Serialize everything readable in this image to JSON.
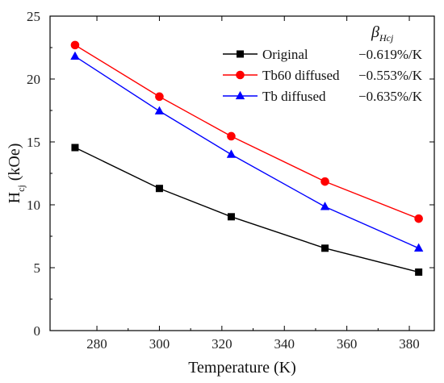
{
  "chart_data": {
    "type": "line",
    "xlabel": "Temperature (K)",
    "ylabel": {
      "main": "H",
      "sub": "cj",
      "unit": " (kOe)"
    },
    "xlim": [
      265,
      388
    ],
    "ylim": [
      0,
      25
    ],
    "xticks": [
      280,
      300,
      320,
      340,
      360,
      380
    ],
    "yticks": [
      0,
      5,
      10,
      15,
      20,
      25
    ],
    "grid": false,
    "legend_position": "top-right",
    "legend_header": {
      "symbol": "β",
      "sub": "Hcj"
    },
    "series": [
      {
        "name": "Original",
        "annotation": "−0.619%/K",
        "color": "#000000",
        "marker": "square",
        "x": [
          273,
          300,
          323,
          353,
          383
        ],
        "y": [
          14.55,
          11.3,
          9.05,
          6.55,
          4.65
        ]
      },
      {
        "name": "Tb60 diffused",
        "annotation": "−0.553%/K",
        "color": "#ff0000",
        "marker": "circle",
        "x": [
          273,
          300,
          323,
          353,
          383
        ],
        "y": [
          22.7,
          18.6,
          15.45,
          11.85,
          8.9
        ]
      },
      {
        "name": "Tb diffused",
        "annotation": "−0.635%/K",
        "color": "#0000ff",
        "marker": "triangle",
        "x": [
          273,
          300,
          323,
          353,
          383
        ],
        "y": [
          21.8,
          17.45,
          14.0,
          9.85,
          6.55
        ]
      }
    ]
  }
}
